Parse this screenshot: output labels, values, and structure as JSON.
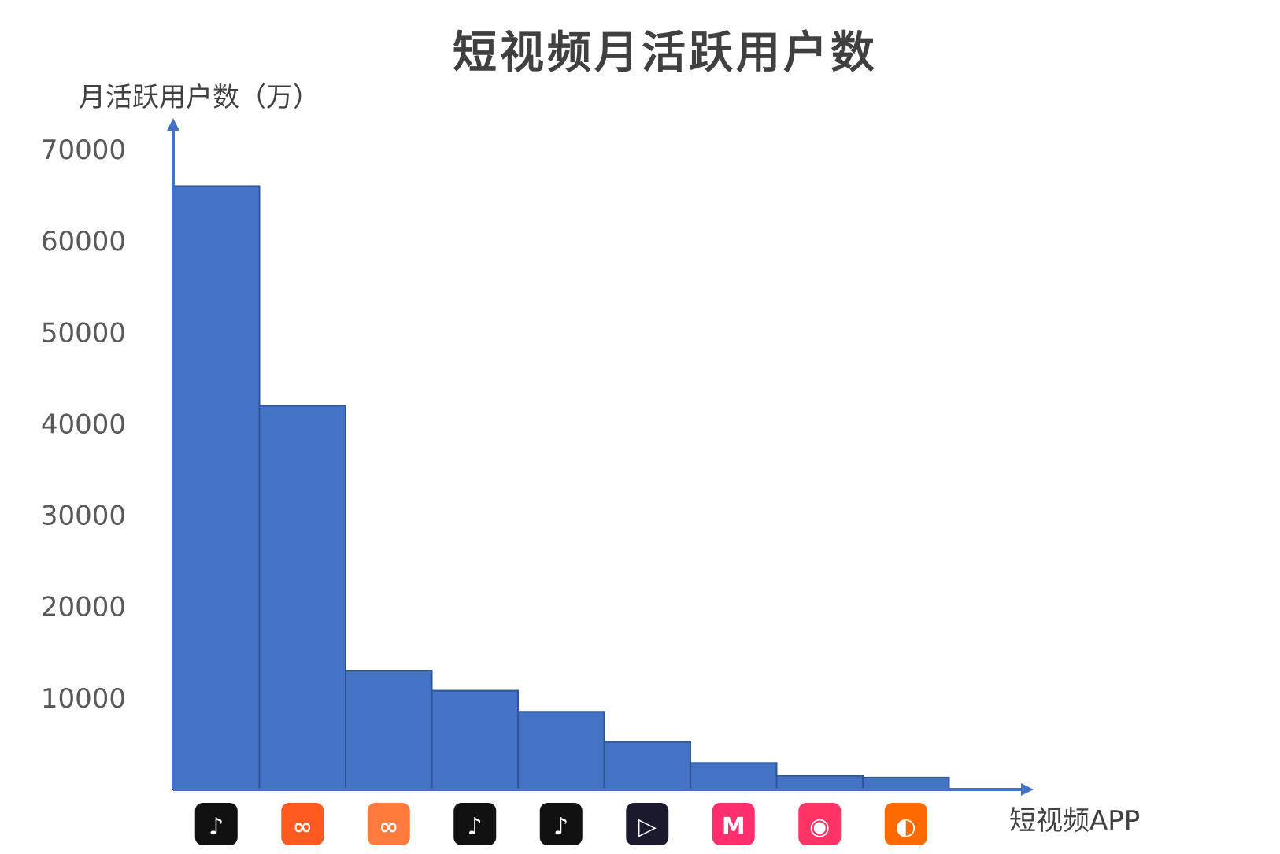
{
  "chart_data": {
    "type": "bar",
    "title": "短视频月活跃用户数",
    "ylabel": "月活跃用户数（万）",
    "xlabel": "短视频APP",
    "y_ticks": [
      10000,
      20000,
      30000,
      40000,
      50000,
      60000,
      70000
    ],
    "y_tick_labels": [
      "10000",
      "20000",
      "30000",
      "40000",
      "50000",
      "60000",
      "70000"
    ],
    "ylim": [
      0,
      70000
    ],
    "grid": false,
    "categories": [
      "douyin-app-icon",
      "kuaishou-app-icon",
      "kuaishou-lite-app-icon",
      "douyin-volcano-app-icon",
      "douyin-lite-app-icon",
      "weishi-app-icon",
      "meipai-app-icon",
      "haokan-video-app-icon",
      "kuaishou-express-app-icon"
    ],
    "values": [
      66000,
      42000,
      13000,
      10800,
      8500,
      5200,
      2900,
      1500,
      1300
    ],
    "bar_color": "#4472C4",
    "bar_edge_color": "#2F5597",
    "axis_color": "#4472C4",
    "icon_colors": [
      "#111111",
      "#FF5A1F",
      "#FF7A3D",
      "#111111",
      "#111111",
      "#1A1A2E",
      "#FF2F6E",
      "#FF3366",
      "#FF6A00"
    ]
  }
}
